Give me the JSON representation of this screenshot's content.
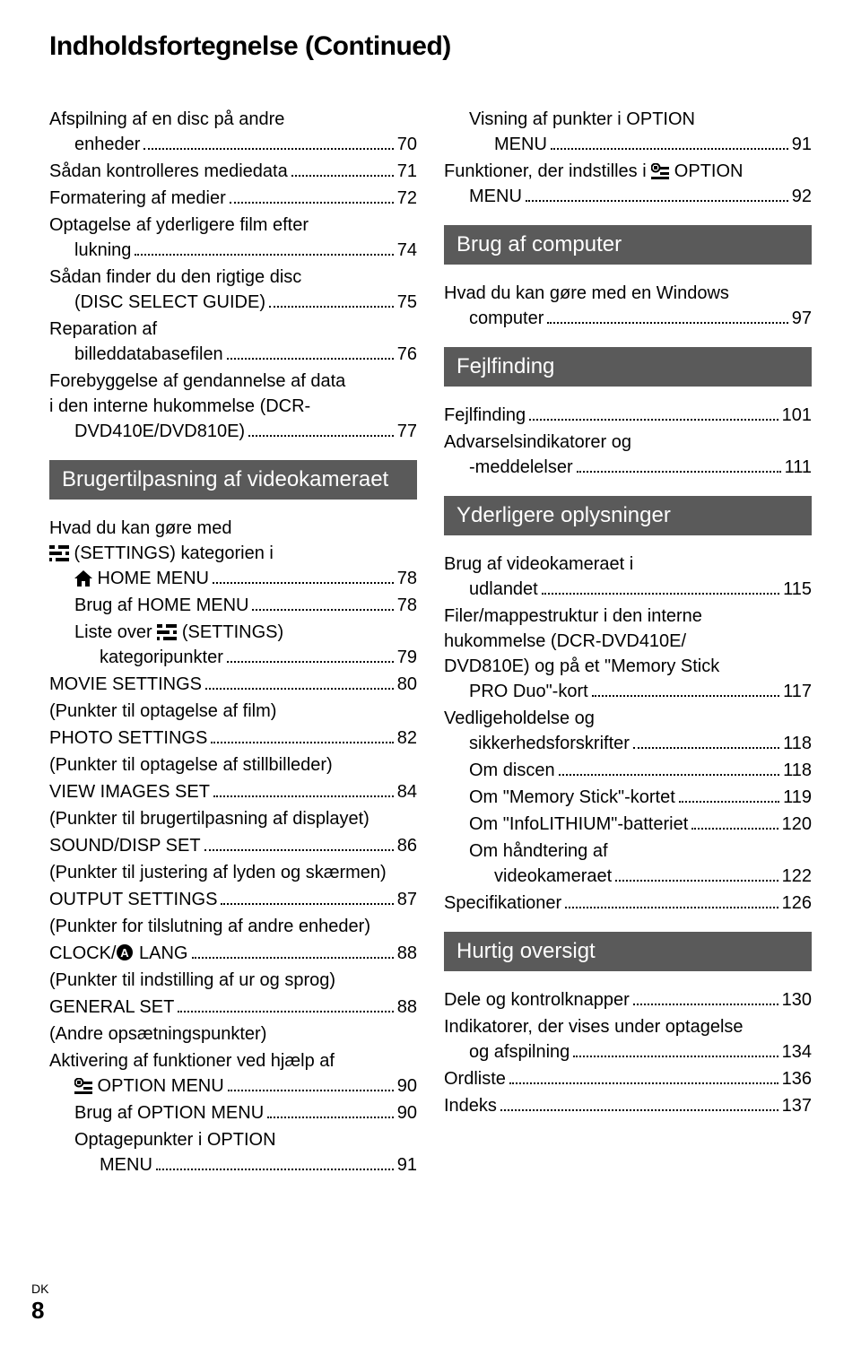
{
  "title": "Indholdsfortegnelse (Continued)",
  "footer": {
    "lang": "DK",
    "page": "8"
  },
  "left": {
    "items1": [
      {
        "type": "wrap",
        "lines": [
          "Afspilning af en disc på andre"
        ],
        "last": "enheder",
        "page": "70",
        "indent": 0
      },
      {
        "type": "line",
        "label": "Sådan kontrolleres mediedata",
        "page": "71",
        "indent": 0
      },
      {
        "type": "line",
        "label": "Formatering af medier",
        "page": "72",
        "indent": 0
      },
      {
        "type": "wrap",
        "lines": [
          "Optagelse af yderligere film efter"
        ],
        "last": "lukning",
        "page": "74",
        "indent": 0
      },
      {
        "type": "wrap",
        "lines": [
          "Sådan finder du den rigtige disc"
        ],
        "last": "(DISC SELECT GUIDE)",
        "page": "75",
        "indent": 0
      },
      {
        "type": "wrap",
        "lines": [
          "Reparation af"
        ],
        "last": "billeddatabasefilen",
        "page": "76",
        "indent": 0
      },
      {
        "type": "wrap",
        "lines": [
          "Forebyggelse af gendannelse af data",
          "i den interne hukommelse (DCR-"
        ],
        "last": "DVD410E/DVD810E)",
        "page": "77",
        "indent": 0
      }
    ],
    "section1": "Brugertilpasning af videokameraet",
    "items2": [
      {
        "type": "wrap",
        "lines": [
          "Hvad du kan gøre med",
          "__SETTINGS__(SETTINGS) kategorien i"
        ],
        "last": "__HOME__HOME MENU",
        "page": "78",
        "indent": 0
      },
      {
        "type": "line",
        "label": "Brug af HOME MENU",
        "page": "78",
        "indent": 1
      },
      {
        "type": "wrap",
        "lines": [
          "Liste over __SETTINGS__(SETTINGS)"
        ],
        "last": "kategoripunkter",
        "page": "79",
        "indent": 1
      },
      {
        "type": "line",
        "label": "MOVIE SETTINGS",
        "page": "80",
        "indent": 0
      },
      {
        "type": "note",
        "label": "(Punkter til optagelse af film)",
        "indent": 0
      },
      {
        "type": "line",
        "label": "PHOTO SETTINGS",
        "page": "82",
        "indent": 0
      },
      {
        "type": "note",
        "label": "(Punkter til optagelse af stillbilleder)",
        "indent": 0
      },
      {
        "type": "line",
        "label": "VIEW IMAGES SET",
        "page": "84",
        "indent": 0
      },
      {
        "type": "note",
        "label": "(Punkter til brugertilpasning af displayet)",
        "indent": 0
      },
      {
        "type": "line",
        "label": "SOUND/DISP SET",
        "page": "86",
        "indent": 0
      },
      {
        "type": "note",
        "label": "(Punkter til justering af lyden og skærmen)",
        "indent": 0
      },
      {
        "type": "line",
        "label": "OUTPUT SETTINGS",
        "page": "87",
        "indent": 0
      },
      {
        "type": "note",
        "label": "(Punkter for tilslutning af andre enheder)",
        "indent": 0
      },
      {
        "type": "line",
        "label": "CLOCK/__LANG__LANG",
        "page": "88",
        "indent": 0
      },
      {
        "type": "note",
        "label": "(Punkter til indstilling af ur og sprog)",
        "indent": 0
      },
      {
        "type": "line",
        "label": "GENERAL SET",
        "page": "88",
        "indent": 0
      },
      {
        "type": "note",
        "label": "(Andre opsætningspunkter)",
        "indent": 0
      },
      {
        "type": "wrap",
        "lines": [
          "Aktivering af funktioner ved hjælp af"
        ],
        "last": "__OPTION__OPTION MENU",
        "page": "90",
        "indent": 0
      },
      {
        "type": "line",
        "label": "Brug af OPTION MENU",
        "page": "90",
        "indent": 1
      },
      {
        "type": "wrap",
        "lines": [
          "Optagepunkter i OPTION"
        ],
        "last": "MENU",
        "page": "91",
        "indent": 1
      }
    ]
  },
  "right": {
    "items1": [
      {
        "type": "wrap",
        "lines": [
          "Visning af punkter i OPTION"
        ],
        "last": "MENU",
        "page": "91",
        "indent": 1
      },
      {
        "type": "wrap",
        "lines": [
          "Funktioner, der indstilles i __OPTION__OPTION"
        ],
        "last": "MENU",
        "page": "92",
        "indent": 0
      }
    ],
    "section1": "Brug af computer",
    "items2": [
      {
        "type": "wrap",
        "lines": [
          "Hvad du kan gøre med en Windows"
        ],
        "last": "computer",
        "page": "97",
        "indent": 0
      }
    ],
    "section2": "Fejlfinding",
    "items3": [
      {
        "type": "line",
        "label": "Fejlfinding",
        "page": "101",
        "indent": 0
      },
      {
        "type": "wrap",
        "lines": [
          "Advarselsindikatorer og"
        ],
        "last": "-meddelelser",
        "page": "111",
        "indent": 0
      }
    ],
    "section3": "Yderligere oplysninger",
    "items4": [
      {
        "type": "wrap",
        "lines": [
          "Brug af videokameraet i"
        ],
        "last": "udlandet",
        "page": "115",
        "indent": 0
      },
      {
        "type": "wrap",
        "lines": [
          "Filer/mappestruktur i den interne",
          "hukommelse (DCR-DVD410E/",
          "DVD810E) og på et \"Memory Stick"
        ],
        "last": "PRO Duo\"-kort",
        "page": "117",
        "indent": 0
      },
      {
        "type": "wrap",
        "lines": [
          "Vedligeholdelse og"
        ],
        "last": "sikkerhedsforskrifter",
        "page": "118",
        "indent": 0
      },
      {
        "type": "line",
        "label": "Om discen",
        "page": "118",
        "indent": 1
      },
      {
        "type": "line",
        "label": "Om \"Memory Stick\"-kortet",
        "page": "119",
        "indent": 1
      },
      {
        "type": "line",
        "label": "Om \"InfoLITHIUM\"-batteriet",
        "page": "120",
        "indent": 1
      },
      {
        "type": "wrap",
        "lines": [
          "Om håndtering af"
        ],
        "last": "videokameraet",
        "page": "122",
        "indent": 1
      },
      {
        "type": "line",
        "label": "Specifikationer",
        "page": "126",
        "indent": 0
      }
    ],
    "section4": "Hurtig oversigt",
    "items5": [
      {
        "type": "line",
        "label": "Dele og kontrolknapper",
        "page": "130",
        "indent": 0
      },
      {
        "type": "wrap",
        "lines": [
          "Indikatorer, der vises under optagelse"
        ],
        "last": "og afspilning",
        "page": "134",
        "indent": 0
      },
      {
        "type": "line",
        "label": "Ordliste",
        "page": "136",
        "indent": 0
      },
      {
        "type": "line",
        "label": "Indeks",
        "page": "137",
        "indent": 0
      }
    ]
  }
}
